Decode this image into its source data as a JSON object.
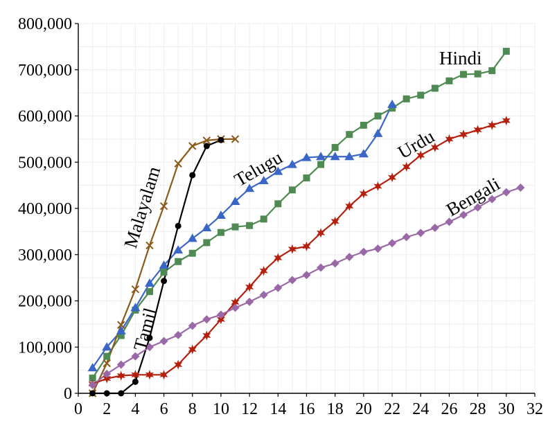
{
  "chart_data": {
    "type": "line",
    "xlim": [
      0,
      32
    ],
    "ylim": [
      0,
      800000
    ],
    "x_ticks": [
      0,
      2,
      4,
      6,
      8,
      10,
      12,
      14,
      16,
      18,
      20,
      22,
      24,
      26,
      28,
      30,
      32
    ],
    "x_tick_labels": [
      "0",
      "2",
      "4",
      "6",
      "8",
      "10",
      "12",
      "14",
      "16",
      "18",
      "20",
      "22",
      "24",
      "26",
      "28",
      "30",
      "32"
    ],
    "y_ticks": [
      0,
      100000,
      200000,
      300000,
      400000,
      500000,
      600000,
      700000,
      800000
    ],
    "y_tick_labels": [
      "0",
      "100,000",
      "200,000",
      "300,000",
      "400,000",
      "500,000",
      "600,000",
      "700,000",
      "800,000"
    ],
    "grid": true,
    "legend": "none (series labelled inline)",
    "series": [
      {
        "name": "Hindi",
        "color": "#4e8a52",
        "marker": "square",
        "x": [
          1,
          2,
          3,
          4,
          5,
          6,
          7,
          8,
          9,
          10,
          11,
          12,
          13,
          14,
          15,
          16,
          17,
          18,
          19,
          20,
          21,
          22,
          23,
          24,
          25,
          26,
          27,
          28,
          29,
          30
        ],
        "values": [
          33000,
          80000,
          125000,
          180000,
          220000,
          262000,
          285000,
          303000,
          326000,
          348000,
          360000,
          363000,
          377000,
          410000,
          440000,
          466000,
          495000,
          532000,
          560000,
          580000,
          600000,
          617000,
          637000,
          645000,
          660000,
          676000,
          690000,
          691000,
          698000,
          740000
        ]
      },
      {
        "name": "Telugu",
        "color": "#3a66c8",
        "marker": "triangle",
        "x": [
          1,
          2,
          3,
          4,
          5,
          6,
          7,
          8,
          9,
          10,
          11,
          12,
          13,
          14,
          15,
          16,
          17,
          18,
          19,
          20,
          21,
          22
        ],
        "values": [
          55000,
          100000,
          135000,
          185000,
          238000,
          277000,
          310000,
          335000,
          358000,
          385000,
          415000,
          443000,
          460000,
          480000,
          495000,
          510000,
          512000,
          512000,
          512000,
          518000,
          562000,
          625000
        ]
      },
      {
        "name": "Malayalam",
        "color": "#8b5a1a",
        "marker": "x",
        "x": [
          1,
          2,
          3,
          4,
          5,
          6,
          7,
          8,
          9,
          10,
          11
        ],
        "values": [
          0,
          65000,
          148000,
          225000,
          320000,
          405000,
          497000,
          535000,
          547000,
          550000,
          550000
        ]
      },
      {
        "name": "Tamil",
        "color": "#000000",
        "marker": "circle",
        "x": [
          1,
          2,
          3,
          4,
          5,
          6,
          7,
          8,
          9,
          10
        ],
        "values": [
          0,
          0,
          0,
          25000,
          120000,
          243000,
          362000,
          472000,
          535000,
          548000
        ]
      },
      {
        "name": "Urdu",
        "color": "#b5200e",
        "marker": "star",
        "x": [
          1,
          2,
          3,
          4,
          5,
          6,
          7,
          8,
          9,
          10,
          11,
          12,
          13,
          14,
          15,
          16,
          17,
          18,
          19,
          20,
          21,
          22,
          23,
          24,
          25,
          26,
          27,
          28,
          29,
          30
        ],
        "values": [
          20000,
          32000,
          38000,
          40000,
          40000,
          40000,
          62000,
          95000,
          125000,
          160000,
          197000,
          230000,
          265000,
          293000,
          312000,
          318000,
          347000,
          372000,
          405000,
          432000,
          448000,
          467000,
          490000,
          515000,
          532000,
          550000,
          560000,
          570000,
          580000,
          590000
        ]
      },
      {
        "name": "Bengali",
        "color": "#9a68a6",
        "marker": "diamond",
        "x": [
          1,
          2,
          3,
          4,
          5,
          6,
          7,
          8,
          9,
          10,
          11,
          12,
          13,
          14,
          15,
          16,
          17,
          18,
          19,
          20,
          21,
          22,
          23,
          24,
          25,
          26,
          27,
          28,
          29,
          30,
          31
        ],
        "values": [
          18000,
          42000,
          62000,
          80000,
          100000,
          113000,
          126000,
          146000,
          160000,
          170000,
          185000,
          198000,
          213000,
          228000,
          245000,
          256000,
          272000,
          281000,
          295000,
          306000,
          313000,
          325000,
          338000,
          347000,
          358000,
          371000,
          386000,
          402000,
          420000,
          435000,
          445000
        ]
      }
    ]
  }
}
